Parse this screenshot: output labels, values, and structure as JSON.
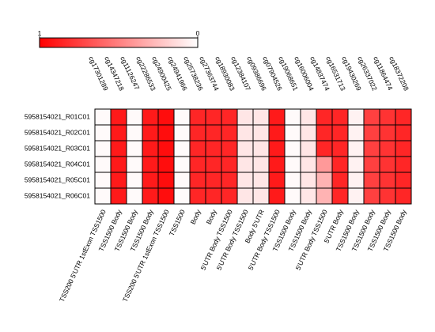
{
  "chart_data": {
    "type": "heatmap",
    "columns": [
      "cg17301289",
      "cg14347218",
      "cg11126247",
      "cg22286533",
      "cg24900425",
      "cg24941966",
      "cg25738236",
      "cg27363744",
      "cg18930083",
      "cg12384107",
      "cg09386696",
      "cg07904526",
      "cg19068651",
      "cg16006004",
      "cg14837474",
      "cg16531713",
      "cg19430269",
      "cg26337022",
      "cg11864474",
      "cg18372208"
    ],
    "column_annotations": [
      "TSS200 5'UTR 1stExon TSS1500",
      "TSS1500 Body",
      "TSS1500 Body",
      "TSS1500 Body",
      "TSS200 5'UTR 1stExon TSS1500",
      "TSS1500",
      "Body",
      "Body",
      "5'UTR Body TSS1500",
      "5'UTR Body TSS1500",
      "Body 5'UTR",
      "5'UTR Body TSS1500",
      "TSS1500 Body",
      "TSS1500 Body",
      "5'UTR Body TSS1500",
      "5'UTR Body",
      "TSS1500 Body",
      "TSS1500 Body",
      "TSS1500 Body",
      "TSS1500 Body"
    ],
    "series": [
      {
        "name": "5958154021_R01C01",
        "values": [
          0.02,
          0.9,
          0.02,
          0.9,
          0.95,
          0.02,
          0.85,
          0.85,
          0.85,
          0.1,
          0.1,
          0.9,
          0.02,
          0.1,
          0.85,
          0.85,
          0.05,
          0.75,
          0.8,
          0.85
        ]
      },
      {
        "name": "5958154021_R02C01",
        "values": [
          0.02,
          0.9,
          0.02,
          0.9,
          0.95,
          0.02,
          0.85,
          0.85,
          0.85,
          0.1,
          0.1,
          0.9,
          0.02,
          0.1,
          0.85,
          0.85,
          0.05,
          0.75,
          0.8,
          0.85
        ]
      },
      {
        "name": "5958154021_R03C01",
        "values": [
          0.02,
          0.9,
          0.02,
          0.9,
          0.95,
          0.02,
          0.85,
          0.85,
          0.85,
          0.1,
          0.1,
          0.9,
          0.02,
          0.1,
          0.85,
          0.85,
          0.05,
          0.75,
          0.8,
          0.85
        ]
      },
      {
        "name": "5958154021_R04C01",
        "values": [
          0.02,
          0.9,
          0.02,
          0.9,
          0.95,
          0.02,
          0.85,
          0.85,
          0.85,
          0.1,
          0.1,
          0.9,
          0.02,
          0.1,
          0.4,
          0.85,
          0.05,
          0.75,
          0.8,
          0.85
        ]
      },
      {
        "name": "5958154021_R05C01",
        "values": [
          0.02,
          0.9,
          0.02,
          0.9,
          0.95,
          0.02,
          0.85,
          0.85,
          0.85,
          0.1,
          0.1,
          0.9,
          0.02,
          0.1,
          0.3,
          0.85,
          0.05,
          0.75,
          0.8,
          0.85
        ]
      },
      {
        "name": "5958154021_R06C01",
        "values": [
          0.02,
          0.9,
          0.02,
          0.9,
          0.95,
          0.02,
          0.85,
          0.85,
          0.85,
          0.1,
          0.1,
          0.9,
          0.02,
          0.1,
          0.3,
          0.85,
          0.05,
          0.75,
          0.8,
          0.85
        ]
      }
    ],
    "zlim": [
      0,
      1
    ],
    "zticks": [
      0,
      1
    ],
    "low_color": "#ffffff",
    "high_color": "#ff0000"
  }
}
